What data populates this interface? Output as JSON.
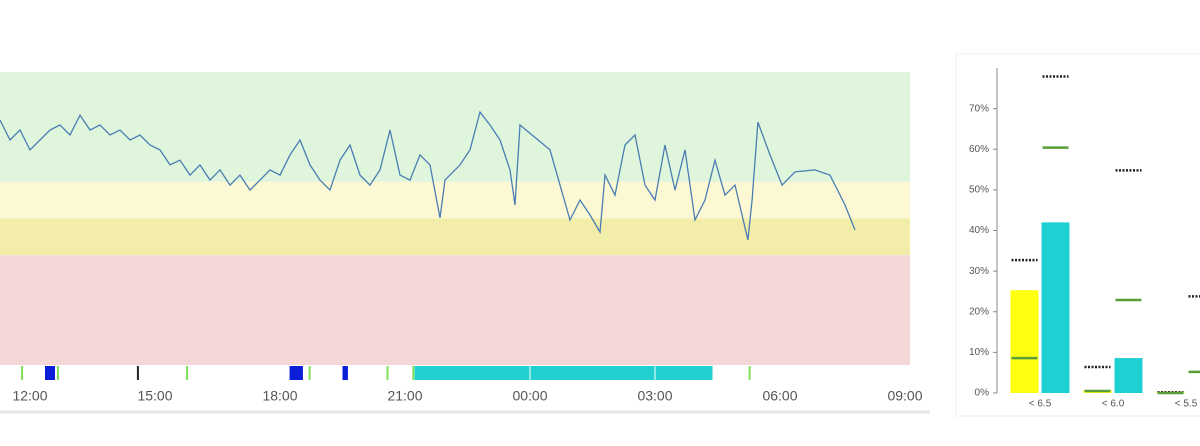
{
  "chart_data": [
    {
      "type": "line",
      "x": [
        11.28,
        11.52,
        11.76,
        12.0,
        12.24,
        12.48,
        12.72,
        12.96,
        13.2,
        13.44,
        13.68,
        13.92,
        14.16,
        14.4,
        14.64,
        14.88,
        15.12,
        15.36,
        15.6,
        15.84,
        16.08,
        16.32,
        16.56,
        16.8,
        17.04,
        17.28,
        17.52,
        17.76,
        18.0,
        18.24,
        18.48,
        18.72,
        18.96,
        19.2,
        19.44,
        19.68,
        19.92,
        20.16,
        20.4,
        20.64,
        20.88,
        21.12,
        21.36,
        21.6,
        21.84,
        21.96,
        22.32,
        22.56,
        22.8,
        23.04,
        23.28,
        23.52,
        23.64,
        23.76,
        24.48,
        24.72,
        24.96,
        25.2,
        25.44,
        25.68,
        25.8,
        26.04,
        26.28,
        26.52,
        26.76,
        27.0,
        27.24,
        27.48,
        27.72,
        27.96,
        28.2,
        28.44,
        28.68,
        28.92,
        29.23,
        29.33,
        29.47,
        29.76,
        30.05,
        30.36,
        30.84,
        31.2,
        31.56,
        31.8
      ],
      "series": [
        {
          "color": "#4a7db3",
          "values": [
            83.6,
            76.8,
            80.2,
            73.4,
            76.8,
            80.2,
            81.9,
            78.5,
            85.3,
            80.2,
            81.9,
            78.5,
            80.2,
            76.8,
            78.5,
            75.1,
            73.4,
            68.3,
            69.9,
            64.8,
            68.3,
            63.1,
            66.6,
            61.4,
            64.8,
            59.7,
            63.1,
            66.6,
            64.8,
            71.7,
            76.8,
            68.3,
            63.1,
            59.7,
            69.9,
            75.1,
            64.8,
            61.4,
            66.6,
            80.2,
            64.8,
            63.1,
            71.7,
            68.3,
            50.2,
            63.1,
            68.3,
            73.4,
            86.3,
            81.9,
            76.8,
            66.6,
            54.6,
            81.9,
            73.4,
            61.4,
            49.5,
            56.3,
            51.2,
            45.4,
            64.8,
            58.0,
            75.1,
            78.5,
            61.4,
            56.3,
            75.1,
            59.7,
            73.4,
            49.5,
            56.3,
            69.9,
            58.0,
            61.4,
            42.7,
            56.3,
            82.9,
            71.7,
            61.4,
            65.9,
            66.6,
            64.8,
            54.6,
            46.1
          ]
        }
      ],
      "xlim": [
        11.28,
        33.12
      ],
      "xticks": [
        {
          "value": 12,
          "label": "12:00"
        },
        {
          "value": 15,
          "label": "15:00"
        },
        {
          "value": 18,
          "label": "18:00"
        },
        {
          "value": 21,
          "label": "21:00"
        },
        {
          "value": 24,
          "label": "00:00"
        },
        {
          "value": 27,
          "label": "03:00"
        },
        {
          "value": 30,
          "label": "06:00"
        },
        {
          "value": 33,
          "label": "09:00"
        }
      ],
      "ylim": [
        0,
        100
      ],
      "bands": [
        {
          "from": 62.5,
          "to": 100,
          "color": "#dff6dc"
        },
        {
          "from": 50,
          "to": 62.5,
          "color": "#fbf8d3"
        },
        {
          "from": 37.5,
          "to": 50,
          "color": "#f2eeaa"
        },
        {
          "from": 0,
          "to": 37.5,
          "color": "#f6d7d7"
        }
      ],
      "event_blocks": [
        {
          "start": 12.36,
          "end": 12.6,
          "color": "#0a1ed8"
        },
        {
          "start": 18.23,
          "end": 18.55,
          "color": "#0a1ed8"
        },
        {
          "start": 19.5,
          "end": 19.63,
          "color": "#0a1ed8"
        },
        {
          "start": 21.23,
          "end": 28.38,
          "color": "#22d0d2"
        }
      ],
      "event_ticks": [
        {
          "x": 11.81,
          "color": "#7ee05a"
        },
        {
          "x": 12.67,
          "color": "#7ee05a"
        },
        {
          "x": 14.59,
          "color": "#222222"
        },
        {
          "x": 15.77,
          "color": "#7ee05a"
        },
        {
          "x": 18.71,
          "color": "#7ee05a"
        },
        {
          "x": 20.58,
          "color": "#7ee05a"
        },
        {
          "x": 21.2,
          "color": "#7ee05a"
        },
        {
          "x": 29.27,
          "color": "#7ee05a"
        }
      ]
    },
    {
      "type": "bar",
      "categories": [
        "< 6.5",
        "< 6.0",
        "< 5.5"
      ],
      "series": [
        {
          "color": "#ffff10",
          "values": [
            25.3,
            0.7,
            0.3
          ]
        },
        {
          "color": "#1fd0d3",
          "values": [
            42.0,
            8.6,
            null
          ]
        }
      ],
      "markers": [
        {
          "color": "#222222",
          "style": "dotted",
          "values": [
            [
              32.7,
              77.9
            ],
            [
              6.4,
              54.8
            ],
            [
              0.2,
              23.8
            ]
          ]
        },
        {
          "color": "#5a9e3a",
          "style": "dashed",
          "values": [
            [
              8.6,
              60.4
            ],
            [
              0.5,
              22.9
            ],
            [
              0,
              5.2
            ]
          ]
        }
      ],
      "ylim": [
        0,
        80
      ],
      "yticks": [
        {
          "value": 0,
          "label": "0%"
        },
        {
          "value": 10,
          "label": "10%"
        },
        {
          "value": 20,
          "label": "20%"
        },
        {
          "value": 30,
          "label": "30%"
        },
        {
          "value": 40,
          "label": "40%"
        },
        {
          "value": 50,
          "label": "50%"
        },
        {
          "value": 60,
          "label": "60%"
        },
        {
          "value": 70,
          "label": "70%"
        }
      ]
    }
  ]
}
